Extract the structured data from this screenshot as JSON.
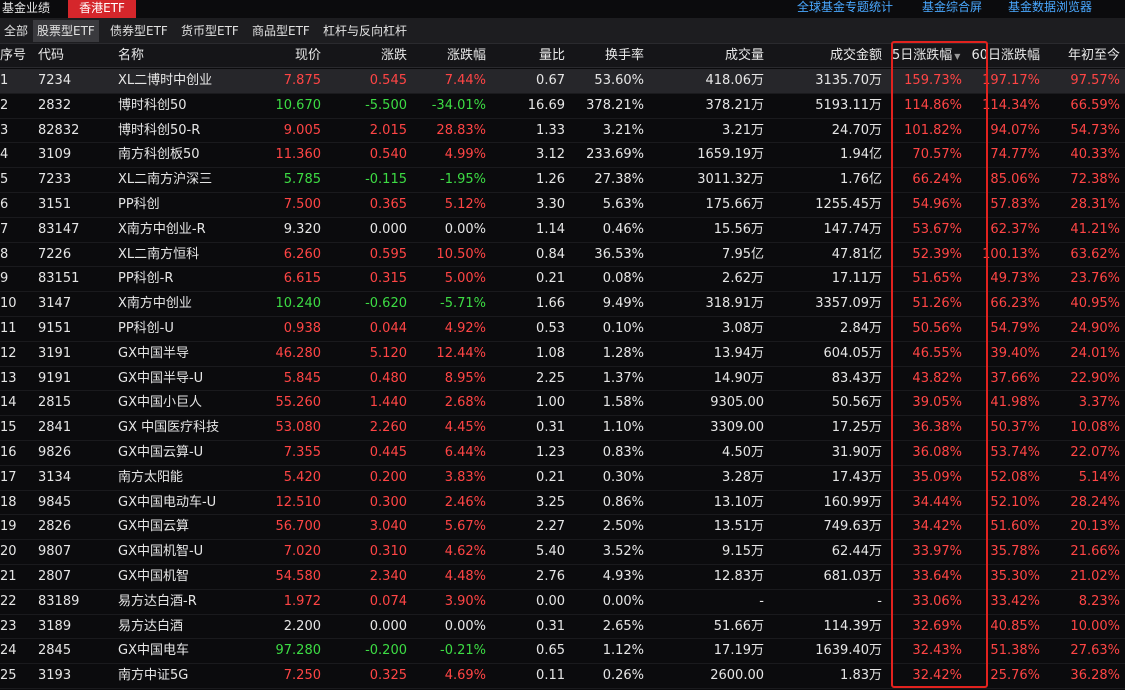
{
  "topbar": {
    "fund_performance": "基金业绩",
    "hk_etf": "香港ETF",
    "links": [
      "全球基金专题统计",
      "基金综合屏",
      "基金数据浏览器"
    ]
  },
  "subtabs": [
    "全部",
    "股票型ETF",
    "债券型ETF",
    "货币型ETF",
    "商品型ETF",
    "杠杆与反向杠杆"
  ],
  "active_subtab": "股票型ETF",
  "columns": [
    "序号",
    "代码",
    "名称",
    "现价",
    "涨跌",
    "涨跌幅",
    "量比",
    "换手率",
    "成交量",
    "成交金额",
    "5日涨跌幅",
    "60日涨跌幅",
    "年初至今"
  ],
  "sort_indicator": "▼",
  "colors": {
    "up": "#ff4545",
    "down": "#3ddc44",
    "neutral": "#e6e6e6",
    "highlight": "#e2221e",
    "accent": "#d5262b",
    "link": "#4aa8ff"
  },
  "rows": [
    {
      "no": "1",
      "code": "7234",
      "name": "XL二博时中创业",
      "price": "7.875",
      "chg": "0.545",
      "pct": "7.44%",
      "vr": "0.67",
      "turnover": "53.60%",
      "vol": "418.06万",
      "amt": "3135.70万",
      "d5": "159.73%",
      "d60": "197.17%",
      "ytd": "97.57%",
      "dir": "up"
    },
    {
      "no": "2",
      "code": "2832",
      "name": "博时科创50",
      "price": "10.670",
      "chg": "-5.500",
      "pct": "-34.01%",
      "vr": "16.69",
      "turnover": "378.21%",
      "vol": "378.21万",
      "amt": "5193.11万",
      "d5": "114.86%",
      "d60": "114.34%",
      "ytd": "66.59%",
      "dir": "down"
    },
    {
      "no": "3",
      "code": "82832",
      "name": "博时科创50-R",
      "price": "9.005",
      "chg": "2.015",
      "pct": "28.83%",
      "vr": "1.33",
      "turnover": "3.21%",
      "vol": "3.21万",
      "amt": "24.70万",
      "d5": "101.82%",
      "d60": "94.07%",
      "ytd": "54.73%",
      "dir": "up"
    },
    {
      "no": "4",
      "code": "3109",
      "name": "南方科创板50",
      "price": "11.360",
      "chg": "0.540",
      "pct": "4.99%",
      "vr": "3.12",
      "turnover": "233.69%",
      "vol": "1659.19万",
      "amt": "1.94亿",
      "d5": "70.57%",
      "d60": "74.77%",
      "ytd": "40.33%",
      "dir": "up"
    },
    {
      "no": "5",
      "code": "7233",
      "name": "XL二南方沪深三",
      "price": "5.785",
      "chg": "-0.115",
      "pct": "-1.95%",
      "vr": "1.26",
      "turnover": "27.38%",
      "vol": "3011.32万",
      "amt": "1.76亿",
      "d5": "66.24%",
      "d60": "85.06%",
      "ytd": "72.38%",
      "dir": "down"
    },
    {
      "no": "6",
      "code": "3151",
      "name": "PP科创",
      "price": "7.500",
      "chg": "0.365",
      "pct": "5.12%",
      "vr": "3.30",
      "turnover": "5.63%",
      "vol": "175.66万",
      "amt": "1255.45万",
      "d5": "54.96%",
      "d60": "57.83%",
      "ytd": "28.31%",
      "dir": "up"
    },
    {
      "no": "7",
      "code": "83147",
      "name": "X南方中创业-R",
      "price": "9.320",
      "chg": "0.000",
      "pct": "0.00%",
      "vr": "1.14",
      "turnover": "0.46%",
      "vol": "15.56万",
      "amt": "147.74万",
      "d5": "53.67%",
      "d60": "62.37%",
      "ytd": "41.21%",
      "dir": "flat"
    },
    {
      "no": "8",
      "code": "7226",
      "name": "XL二南方恒科",
      "price": "6.260",
      "chg": "0.595",
      "pct": "10.50%",
      "vr": "0.84",
      "turnover": "36.53%",
      "vol": "7.95亿",
      "amt": "47.81亿",
      "d5": "52.39%",
      "d60": "100.13%",
      "ytd": "63.62%",
      "dir": "up"
    },
    {
      "no": "9",
      "code": "83151",
      "name": "PP科创-R",
      "price": "6.615",
      "chg": "0.315",
      "pct": "5.00%",
      "vr": "0.21",
      "turnover": "0.08%",
      "vol": "2.62万",
      "amt": "17.11万",
      "d5": "51.65%",
      "d60": "49.73%",
      "ytd": "23.76%",
      "dir": "up"
    },
    {
      "no": "10",
      "code": "3147",
      "name": "X南方中创业",
      "price": "10.240",
      "chg": "-0.620",
      "pct": "-5.71%",
      "vr": "1.66",
      "turnover": "9.49%",
      "vol": "318.91万",
      "amt": "3357.09万",
      "d5": "51.26%",
      "d60": "66.23%",
      "ytd": "40.95%",
      "dir": "down"
    },
    {
      "no": "11",
      "code": "9151",
      "name": "PP科创-U",
      "price": "0.938",
      "chg": "0.044",
      "pct": "4.92%",
      "vr": "0.53",
      "turnover": "0.10%",
      "vol": "3.08万",
      "amt": "2.84万",
      "d5": "50.56%",
      "d60": "54.79%",
      "ytd": "24.90%",
      "dir": "up"
    },
    {
      "no": "12",
      "code": "3191",
      "name": "GX中国半导",
      "price": "46.280",
      "chg": "5.120",
      "pct": "12.44%",
      "vr": "1.08",
      "turnover": "1.28%",
      "vol": "13.94万",
      "amt": "604.05万",
      "d5": "46.55%",
      "d60": "39.40%",
      "ytd": "24.01%",
      "dir": "up"
    },
    {
      "no": "13",
      "code": "9191",
      "name": "GX中国半导-U",
      "price": "5.845",
      "chg": "0.480",
      "pct": "8.95%",
      "vr": "2.25",
      "turnover": "1.37%",
      "vol": "14.90万",
      "amt": "83.43万",
      "d5": "43.82%",
      "d60": "37.66%",
      "ytd": "22.90%",
      "dir": "up"
    },
    {
      "no": "14",
      "code": "2815",
      "name": "GX中国小巨人",
      "price": "55.260",
      "chg": "1.440",
      "pct": "2.68%",
      "vr": "1.00",
      "turnover": "1.58%",
      "vol": "9305.00",
      "amt": "50.56万",
      "d5": "39.05%",
      "d60": "41.98%",
      "ytd": "3.37%",
      "dir": "up"
    },
    {
      "no": "15",
      "code": "2841",
      "name": "GX 中国医疗科技",
      "price": "53.080",
      "chg": "2.260",
      "pct": "4.45%",
      "vr": "0.31",
      "turnover": "1.10%",
      "vol": "3309.00",
      "amt": "17.25万",
      "d5": "36.38%",
      "d60": "50.37%",
      "ytd": "10.08%",
      "dir": "up"
    },
    {
      "no": "16",
      "code": "9826",
      "name": "GX中国云算-U",
      "price": "7.355",
      "chg": "0.445",
      "pct": "6.44%",
      "vr": "1.23",
      "turnover": "0.83%",
      "vol": "4.50万",
      "amt": "31.90万",
      "d5": "36.08%",
      "d60": "53.74%",
      "ytd": "22.07%",
      "dir": "up"
    },
    {
      "no": "17",
      "code": "3134",
      "name": "南方太阳能",
      "price": "5.420",
      "chg": "0.200",
      "pct": "3.83%",
      "vr": "0.21",
      "turnover": "0.30%",
      "vol": "3.28万",
      "amt": "17.43万",
      "d5": "35.09%",
      "d60": "52.08%",
      "ytd": "5.14%",
      "dir": "up"
    },
    {
      "no": "18",
      "code": "9845",
      "name": "GX中国电动车-U",
      "price": "12.510",
      "chg": "0.300",
      "pct": "2.46%",
      "vr": "3.25",
      "turnover": "0.86%",
      "vol": "13.10万",
      "amt": "160.99万",
      "d5": "34.44%",
      "d60": "52.10%",
      "ytd": "28.24%",
      "dir": "up"
    },
    {
      "no": "19",
      "code": "2826",
      "name": "GX中国云算",
      "price": "56.700",
      "chg": "3.040",
      "pct": "5.67%",
      "vr": "2.27",
      "turnover": "2.50%",
      "vol": "13.51万",
      "amt": "749.63万",
      "d5": "34.42%",
      "d60": "51.60%",
      "ytd": "20.13%",
      "dir": "up"
    },
    {
      "no": "20",
      "code": "9807",
      "name": "GX中国机智-U",
      "price": "7.020",
      "chg": "0.310",
      "pct": "4.62%",
      "vr": "5.40",
      "turnover": "3.52%",
      "vol": "9.15万",
      "amt": "62.44万",
      "d5": "33.97%",
      "d60": "35.78%",
      "ytd": "21.66%",
      "dir": "up"
    },
    {
      "no": "21",
      "code": "2807",
      "name": "GX中国机智",
      "price": "54.580",
      "chg": "2.340",
      "pct": "4.48%",
      "vr": "2.76",
      "turnover": "4.93%",
      "vol": "12.83万",
      "amt": "681.03万",
      "d5": "33.64%",
      "d60": "35.30%",
      "ytd": "21.02%",
      "dir": "up"
    },
    {
      "no": "22",
      "code": "83189",
      "name": "易方达白酒-R",
      "price": "1.972",
      "chg": "0.074",
      "pct": "3.90%",
      "vr": "0.00",
      "turnover": "0.00%",
      "vol": "-",
      "amt": "-",
      "d5": "33.06%",
      "d60": "33.42%",
      "ytd": "8.23%",
      "dir": "up"
    },
    {
      "no": "23",
      "code": "3189",
      "name": "易方达白酒",
      "price": "2.200",
      "chg": "0.000",
      "pct": "0.00%",
      "vr": "0.31",
      "turnover": "2.65%",
      "vol": "51.66万",
      "amt": "114.39万",
      "d5": "32.69%",
      "d60": "40.85%",
      "ytd": "10.00%",
      "dir": "flat"
    },
    {
      "no": "24",
      "code": "2845",
      "name": "GX中国电车",
      "price": "97.280",
      "chg": "-0.200",
      "pct": "-0.21%",
      "vr": "0.65",
      "turnover": "1.12%",
      "vol": "17.19万",
      "amt": "1639.40万",
      "d5": "32.43%",
      "d60": "51.38%",
      "ytd": "27.63%",
      "dir": "down"
    },
    {
      "no": "25",
      "code": "3193",
      "name": "南方中证5G",
      "price": "7.250",
      "chg": "0.325",
      "pct": "4.69%",
      "vr": "0.11",
      "turnover": "0.26%",
      "vol": "2600.00",
      "amt": "1.83万",
      "d5": "32.42%",
      "d60": "25.76%",
      "ytd": "36.28%",
      "dir": "up"
    }
  ]
}
